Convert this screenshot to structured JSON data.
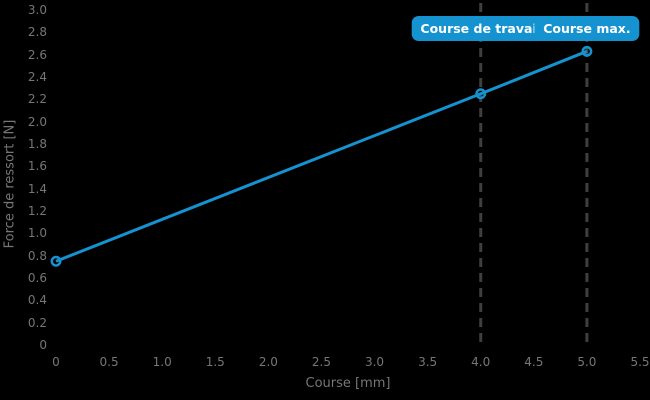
{
  "chart_data": {
    "type": "line",
    "title": "",
    "xlabel": "Course [mm]",
    "ylabel": "Force de ressort [N]",
    "x": [
      0,
      4,
      5
    ],
    "y": [
      0.75,
      2.25,
      2.63
    ],
    "xlim": [
      0,
      5.5
    ],
    "ylim": [
      0,
      3.0
    ],
    "x_ticks": [
      0,
      0.5,
      1.0,
      1.5,
      2.0,
      2.5,
      3.0,
      3.5,
      4.0,
      4.5,
      5.0,
      5.5
    ],
    "x_tick_labels": [
      "0",
      "0.5",
      "1.0",
      "1.5",
      "2.0",
      "2.5",
      "3.0",
      "3.5",
      "4.0",
      "4.5",
      "5.0",
      "5.5"
    ],
    "y_ticks": [
      0,
      0.2,
      0.4,
      0.6,
      0.8,
      1.0,
      1.2,
      1.4,
      1.6,
      1.8,
      2.0,
      2.2,
      2.4,
      2.6,
      2.8,
      3.0
    ],
    "y_tick_labels": [
      "0",
      "0.2",
      "0.4",
      "0.6",
      "0.8",
      "1.0",
      "1.2",
      "1.4",
      "1.6",
      "1.8",
      "2.0",
      "2.2",
      "2.4",
      "2.6",
      "2.8",
      "3.0"
    ],
    "grid": false,
    "legend_position": "none",
    "marker": "open-circle",
    "vlines": [
      {
        "x": 4.0,
        "label": "Course de travail"
      },
      {
        "x": 5.0,
        "label": "Course max."
      }
    ],
    "colors": {
      "line": "#1592d0",
      "marker": "#1592d0",
      "badge_bg": "#1592d0",
      "badge_text": "#ffffff",
      "vline": "#3f3f3f",
      "axis_text": "#767676",
      "background": "#000000"
    }
  }
}
